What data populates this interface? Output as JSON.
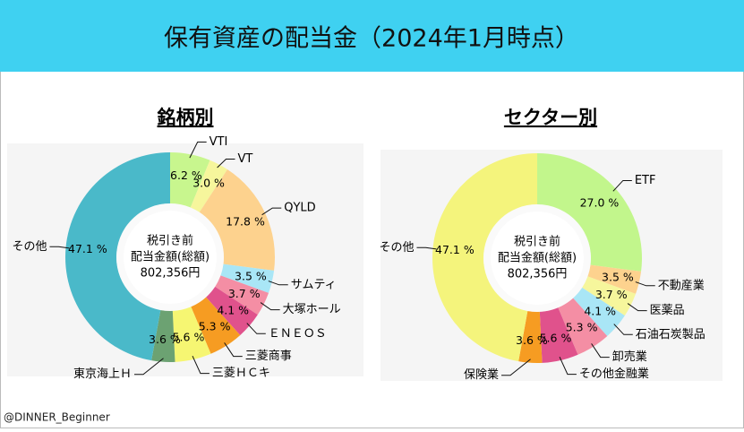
{
  "title": "保有資産の配当金（2024年1月時点）",
  "footer": "@DINNER_Beginner",
  "chart_data": [
    {
      "type": "pie",
      "title": "銘柄別",
      "center_text": [
        "税引き前",
        "配当金額(総額)",
        "802,356円"
      ],
      "categories": [
        "VTI",
        "VT",
        "QYLD",
        "サムティ",
        "大塚ホール",
        "ＥＮＥＯＳ",
        "三菱商事",
        "三菱ＨＣキ",
        "東京海上Ｈ",
        "その他"
      ],
      "values": [
        6.2,
        3.0,
        17.8,
        3.5,
        3.7,
        4.1,
        5.3,
        5.6,
        3.6,
        47.1
      ],
      "value_labels": [
        "6.2 %",
        "3.0 %",
        "17.8 %",
        "3.5 %",
        "3.7 %",
        "4.1 %",
        "5.3 %",
        "5.6 %",
        "3.6 %",
        "47.1 %"
      ],
      "colors": [
        "#c8f68e",
        "#f6f69c",
        "#fdd28e",
        "#a9e6f6",
        "#f48ea4",
        "#e0528c",
        "#f69c22",
        "#f6f672",
        "#6ca272",
        "#4ab9c9"
      ]
    },
    {
      "type": "pie",
      "title": "セクター別",
      "center_text": [
        "税引き前",
        "配当金額(総額)",
        "802,356円"
      ],
      "categories": [
        "ETF",
        "不動産業",
        "医薬品",
        "石油石炭製品",
        "卸売業",
        "その他金融業",
        "保険業",
        "その他"
      ],
      "values": [
        27.0,
        3.5,
        3.7,
        4.1,
        5.3,
        5.6,
        3.6,
        47.1
      ],
      "value_labels": [
        "27.0 %",
        "3.5 %",
        "3.7 %",
        "4.1 %",
        "5.3 %",
        "5.6 %",
        "3.6 %",
        "47.1 %"
      ],
      "colors": [
        "#c2f68c",
        "#fdd28e",
        "#f6f69c",
        "#a9e6f6",
        "#f48ea4",
        "#e0528c",
        "#f69c22",
        "#f4f47c"
      ]
    }
  ]
}
